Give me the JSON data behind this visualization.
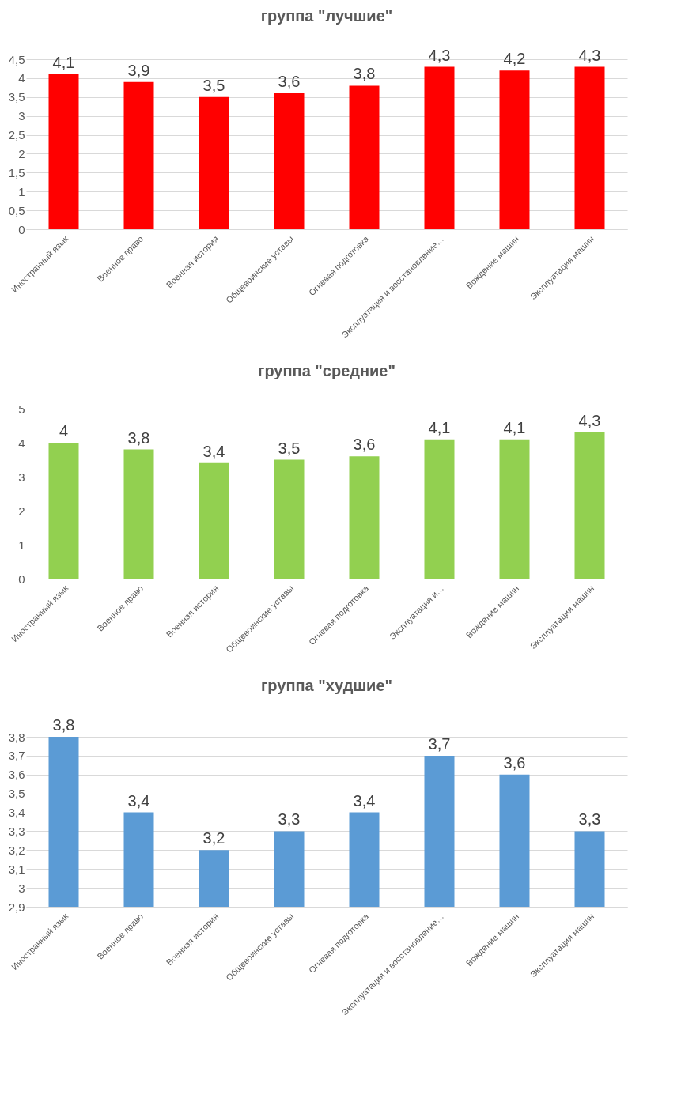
{
  "chart_data": [
    {
      "type": "bar",
      "title": "группа \"лучшие\"",
      "categories": [
        "Иностранный язык",
        "Военное право",
        "Военная история",
        "Общевоинские уставы",
        "Огневая подготовка",
        "Эксплуатация и восстановление…",
        "Вождение машин",
        "Эксплуатация машин"
      ],
      "series": [
        {
          "color": "#ff0000",
          "values": [
            4.1,
            3.9,
            3.5,
            3.6,
            3.8,
            4.3,
            4.2,
            4.3
          ],
          "value_labels": [
            "4,1",
            "3,9",
            "3,5",
            "3,6",
            "3,8",
            "4,3",
            "4,2",
            "4,3"
          ]
        }
      ],
      "ylim": [
        0,
        4.5
      ],
      "yticks": [
        0,
        {
          "value": 0.5,
          "label": "0,5"
        },
        1,
        {
          "value": 1.5,
          "label": "1,5"
        },
        2,
        {
          "value": 2.5,
          "label": "2,5"
        },
        3,
        {
          "value": 3.5,
          "label": "3,5"
        },
        4,
        {
          "value": 4.5,
          "label": "4,5"
        }
      ],
      "grid": "y"
    },
    {
      "type": "bar",
      "title": "группа \"средние\"",
      "categories": [
        "Иностранный язык",
        "Военное право",
        "Военная история",
        "Общевоинские уставы",
        "Огневая подготовка",
        "Эксплуатация и…",
        "Вождение машин",
        "Эксплуатация машин"
      ],
      "series": [
        {
          "color": "#92d050",
          "values": [
            4,
            3.8,
            3.4,
            3.5,
            3.6,
            4.1,
            4.1,
            4.3
          ],
          "value_labels": [
            "4",
            "3,8",
            "3,4",
            "3,5",
            "3,6",
            "4,1",
            "4,1",
            "4,3"
          ]
        }
      ],
      "ylim": [
        0,
        5
      ],
      "yticks": [
        0,
        1,
        2,
        3,
        4,
        5
      ],
      "grid": "y"
    },
    {
      "type": "bar",
      "title": "группа \"худшие\"",
      "categories": [
        "Иностранный язык",
        "Военное право",
        "Военная история",
        "Общевоинские уставы",
        "Огневая подготовка",
        "Эксплуатация и восстановление…",
        "Вождение машин",
        "Эксплуатация машин"
      ],
      "series": [
        {
          "color": "#5b9bd5",
          "values": [
            3.8,
            3.4,
            3.2,
            3.3,
            3.4,
            3.7,
            3.6,
            3.3
          ],
          "value_labels": [
            "3,8",
            "3,4",
            "3,2",
            "3,3",
            "3,4",
            "3,7",
            "3,6",
            "3,3"
          ]
        }
      ],
      "ylim": [
        2.9,
        3.8
      ],
      "yticks": [
        {
          "value": 2.9,
          "label": "2,9"
        },
        3,
        {
          "value": 3.1,
          "label": "3,1"
        },
        {
          "value": 3.2,
          "label": "3,2"
        },
        {
          "value": 3.3,
          "label": "3,3"
        },
        {
          "value": 3.4,
          "label": "3,4"
        },
        {
          "value": 3.5,
          "label": "3,5"
        },
        {
          "value": 3.6,
          "label": "3,6"
        },
        {
          "value": 3.7,
          "label": "3,7"
        },
        {
          "value": 3.8,
          "label": "3,8"
        }
      ],
      "grid": "y"
    }
  ]
}
